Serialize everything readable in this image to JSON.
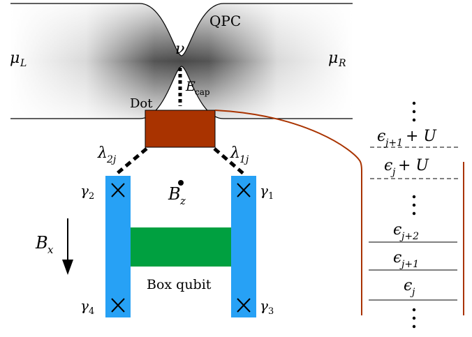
{
  "labels": {
    "qpc": "QPC",
    "nu": "ν",
    "mu_l": "μ",
    "mu_l_sub": "L",
    "mu_r": "μ",
    "mu_r_sub": "R",
    "e_cap": "E",
    "e_cap_sub": "cap",
    "dot": "Dot",
    "lambda_2j": "λ",
    "lambda_2j_sub": "2j",
    "lambda_1j": "λ",
    "lambda_1j_sub": "1j",
    "gamma_1": "γ",
    "gamma_1_sub": "1",
    "gamma_2": "γ",
    "gamma_2_sub": "2",
    "gamma_3": "γ",
    "gamma_3_sub": "3",
    "gamma_4": "γ",
    "gamma_4_sub": "4",
    "b_z": "B",
    "b_z_sub": "z",
    "b_x": "B",
    "b_x_sub": "x",
    "box_qubit": "Box qubit"
  },
  "levels": {
    "e_j1_u": "ϵ",
    "e_j1_u_sub": "j+1",
    "e_j1_u_tail": " + U",
    "e_j_u": "ϵ",
    "e_j_u_sub": "j",
    "e_j_u_tail": " + U",
    "e_j2": "ϵ",
    "e_j2_sub": "j+2",
    "e_j1": "ϵ",
    "e_j1_sub": "j+1",
    "e_j": "ϵ",
    "e_j_sub": "j"
  },
  "colors": {
    "dot": "#a93300",
    "wire": "#27a1f5",
    "qubit": "#00a040",
    "bracket": "#a93300",
    "constriction": "#555555"
  }
}
